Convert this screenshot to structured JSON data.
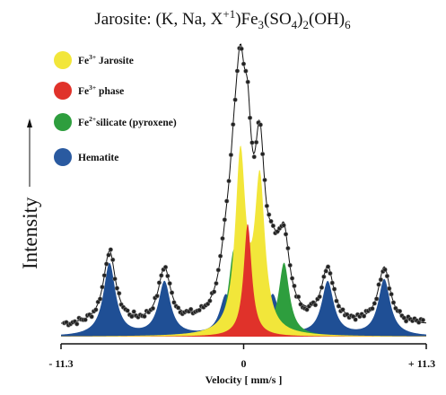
{
  "chart_data": {
    "type": "line",
    "title_parts": {
      "base": "Jarosite: (K, Na, X",
      "sup": "+1",
      "mid1": ")Fe",
      "sub1": "3",
      "mid2": "(SO",
      "sub2": "4",
      "mid3": ")",
      "sub3": "2",
      "mid4": "(OH)",
      "sub4": "6"
    },
    "ylabel": "Intensity",
    "xlabel": "Velocity [ mm/s ]",
    "xlim": [
      -11.3,
      11.3
    ],
    "x_ticks": [
      {
        "value": -11.3,
        "label": "- 11.3"
      },
      {
        "value": 0,
        "label": "0"
      },
      {
        "value": 11.3,
        "label": "+ 11.3"
      }
    ],
    "legend_position": "top-left",
    "legend": [
      {
        "symbol": "Fe",
        "sup": "3+",
        "text": " Jarosite",
        "color": "#f2e63a"
      },
      {
        "symbol": "Fe",
        "sup": "3+",
        "text": " phase",
        "color": "#e0322a"
      },
      {
        "symbol": "Fe",
        "sup": "2+",
        "text": "silicate (pyroxene)",
        "color": "#2e9e3e"
      },
      {
        "symbol": "",
        "sup": "",
        "text": "Hematite",
        "color": "#2a5aa0"
      }
    ],
    "components": [
      {
        "name": "Hematite",
        "color": "#1f4f95",
        "peaks": [
          {
            "center": -8.3,
            "height": 0.27,
            "width": 0.45
          },
          {
            "center": -4.9,
            "height": 0.2,
            "width": 0.45
          },
          {
            "center": -1.1,
            "height": 0.15,
            "width": 0.45
          },
          {
            "center": 1.8,
            "height": 0.15,
            "width": 0.45
          },
          {
            "center": 5.2,
            "height": 0.2,
            "width": 0.45
          },
          {
            "center": 8.7,
            "height": 0.21,
            "width": 0.45
          }
        ]
      },
      {
        "name": "Fe2+ silicate (pyroxene)",
        "color": "#2e9e3e",
        "peaks": [
          {
            "center": -0.6,
            "height": 0.32,
            "width": 0.4
          },
          {
            "center": 2.5,
            "height": 0.27,
            "width": 0.4
          }
        ]
      },
      {
        "name": "Fe3+ Jarosite",
        "color": "#f2e63a",
        "peaks": [
          {
            "center": -0.2,
            "height": 0.66,
            "width": 0.38
          },
          {
            "center": 1.0,
            "height": 0.56,
            "width": 0.38
          }
        ]
      },
      {
        "name": "Fe3+ phase",
        "color": "#e0322a",
        "peaks": [
          {
            "center": 0.25,
            "height": 0.42,
            "width": 0.3
          }
        ]
      }
    ],
    "baseline": 0.04,
    "ylim": [
      0,
      1.0
    ]
  }
}
